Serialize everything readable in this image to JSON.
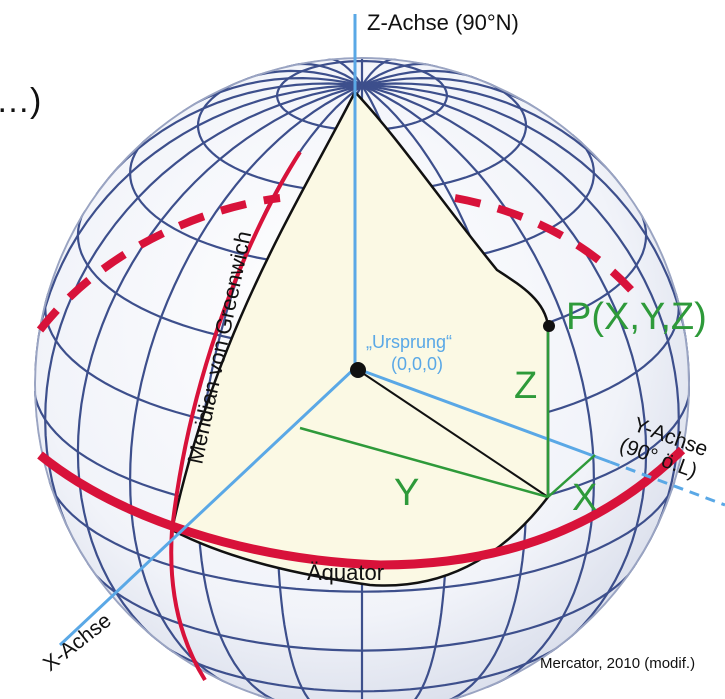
{
  "labels": {
    "corner_fragment": "…)",
    "z_axis": "Z-Achse (90°N)",
    "y_axis_line1": "Y-Achse",
    "y_axis_line2": "(90° ö.L)",
    "x_axis": "X-Achse",
    "origin_name": "„Ursprung“",
    "origin_coords": "(0,0,0)",
    "point_p": "P(X,Y,Z)",
    "comp_x": "X",
    "comp_y": "Y",
    "comp_z": "Z",
    "meridian": "Meridian von Greenwich",
    "equator": "Äquator",
    "credit": "Mercator, 2010 (modif.)"
  },
  "colors": {
    "grid": "#3d4f8c",
    "sphere_fill": "#eef1f8",
    "wedge_fill": "#fbf9e4",
    "equator_red": "#d8123a",
    "axis_blue": "#5aa8e6",
    "vector_green": "#2e9a3a",
    "text_black": "#111111",
    "origin_text_blue": "#5aa8e6"
  }
}
